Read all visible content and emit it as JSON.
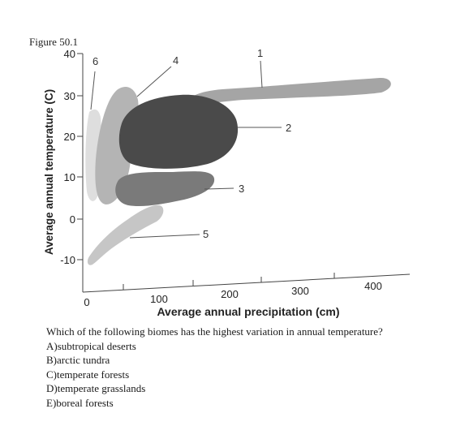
{
  "figure_label": "Figure 50.1",
  "axes": {
    "xlabel": "Average annual precipitation (cm)",
    "ylabel": "Average annual temperature (C)",
    "x_ticks": [
      "0",
      "100",
      "200",
      "300",
      "400"
    ],
    "y_ticks": [
      "40",
      "30",
      "20",
      "10",
      "0",
      "-10"
    ]
  },
  "regions": [
    {
      "label": "1",
      "color": "#a5a5a5"
    },
    {
      "label": "2",
      "color": "#4a4a4a"
    },
    {
      "label": "3",
      "color": "#7a7a7a"
    },
    {
      "label": "4",
      "color": "#b4b4b4"
    },
    {
      "label": "5",
      "color": "#c6c6c6"
    },
    {
      "label": "6",
      "color": "#dedede"
    }
  ],
  "question": {
    "text": "Which of the following biomes has the highest variation in annual temperature?",
    "options": [
      "A)subtropical deserts",
      "B)arctic tundra",
      "C)temperate forests",
      "D)temperate grasslands",
      "E)boreal forests"
    ]
  }
}
